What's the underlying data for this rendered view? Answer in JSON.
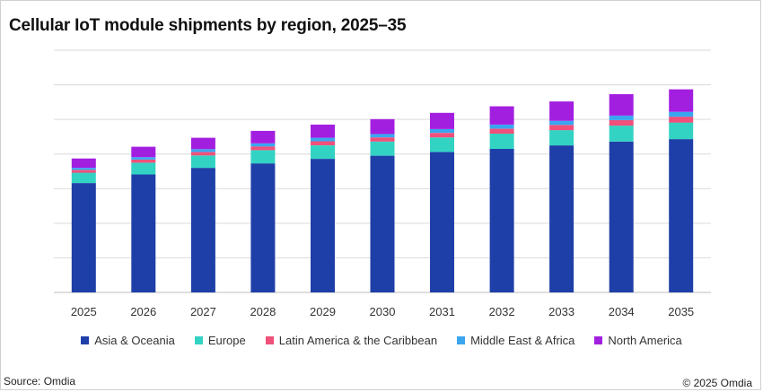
{
  "chart_data": {
    "type": "bar",
    "stacked": true,
    "title": "Cellular IoT module shipments by region, 2025–35",
    "xlabel": "",
    "ylabel": "",
    "y_tick_labels_shown": false,
    "grid": true,
    "legend_position": "bottom",
    "ylim": [
      0,
      7
    ],
    "categories": [
      "2025",
      "2026",
      "2027",
      "2028",
      "2029",
      "2030",
      "2031",
      "2032",
      "2033",
      "2034",
      "2035"
    ],
    "series": [
      {
        "name": "Asia & Oceania",
        "color": "#1f3fa8",
        "values": [
          3.16,
          3.41,
          3.6,
          3.73,
          3.86,
          3.95,
          4.06,
          4.15,
          4.25,
          4.36,
          4.43
        ]
      },
      {
        "name": "Europe",
        "color": "#33d3c4",
        "values": [
          0.3,
          0.34,
          0.36,
          0.38,
          0.39,
          0.41,
          0.42,
          0.44,
          0.44,
          0.46,
          0.48
        ]
      },
      {
        "name": "Latin America & the Caribbean",
        "color": "#f0507a",
        "values": [
          0.08,
          0.09,
          0.1,
          0.11,
          0.12,
          0.12,
          0.13,
          0.14,
          0.15,
          0.16,
          0.17
        ]
      },
      {
        "name": "Middle East & Africa",
        "color": "#3aa6f0",
        "values": [
          0.06,
          0.07,
          0.08,
          0.09,
          0.1,
          0.1,
          0.11,
          0.12,
          0.12,
          0.13,
          0.14
        ]
      },
      {
        "name": "North America",
        "color": "#a31fe0",
        "values": [
          0.27,
          0.3,
          0.33,
          0.36,
          0.38,
          0.43,
          0.47,
          0.53,
          0.56,
          0.62,
          0.65
        ]
      }
    ]
  },
  "footer": {
    "source": "Source: Omdia",
    "copyright": "© 2025 Omdia"
  }
}
